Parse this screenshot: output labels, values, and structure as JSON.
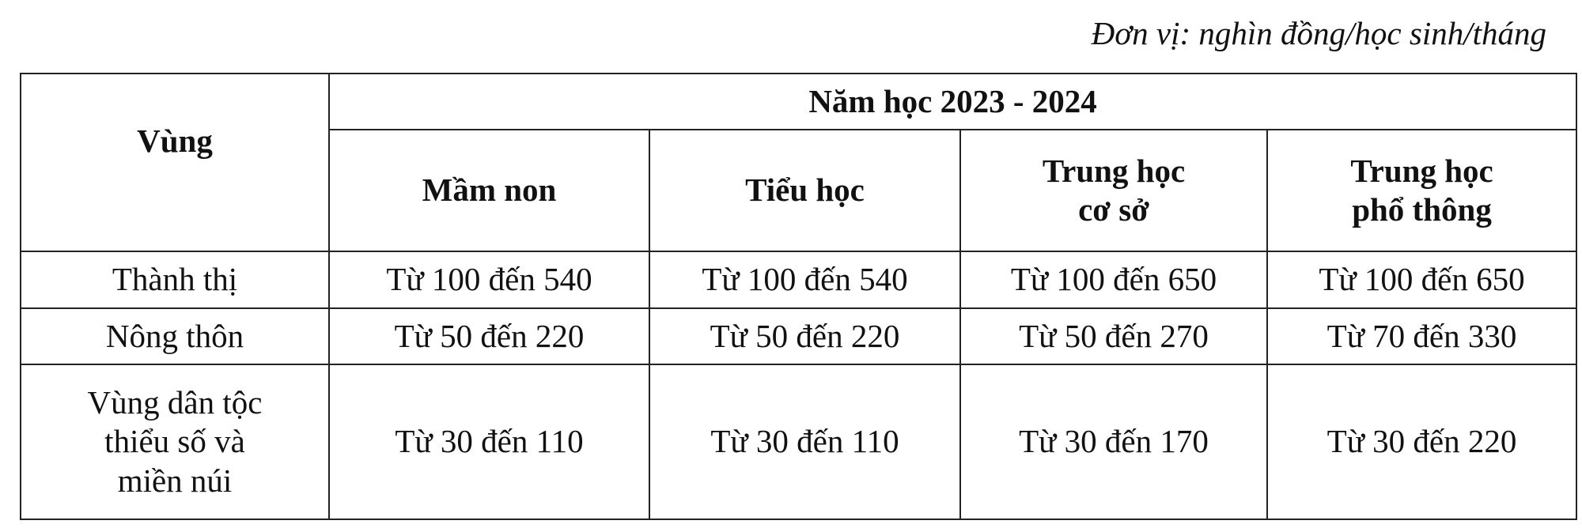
{
  "unit_note": "Đơn vị: nghìn đồng/học sinh/tháng",
  "table": {
    "region_header": "Vùng",
    "year_header": "Năm học 2023 - 2024",
    "level_headers": [
      [
        "Mầm non"
      ],
      [
        "Tiểu học"
      ],
      [
        "Trung học",
        "cơ sở"
      ],
      [
        "Trung học",
        "phổ thông"
      ]
    ],
    "rows": [
      {
        "region": [
          "Thành thị"
        ],
        "cells": [
          "Từ 100 đến 540",
          "Từ 100 đến 540",
          "Từ 100 đến 650",
          "Từ 100 đến 650"
        ]
      },
      {
        "region": [
          "Nông thôn"
        ],
        "cells": [
          "Từ 50 đến 220",
          "Từ 50 đến 220",
          "Từ 50 đến 270",
          "Từ 70 đến 330"
        ]
      },
      {
        "region": [
          "Vùng dân tộc",
          "thiểu số và",
          "miền núi"
        ],
        "cells": [
          "Từ 30 đến 110",
          "Từ 30 đến 110",
          "Từ 30 đến 170",
          "Từ 30 đến 220"
        ]
      }
    ]
  }
}
